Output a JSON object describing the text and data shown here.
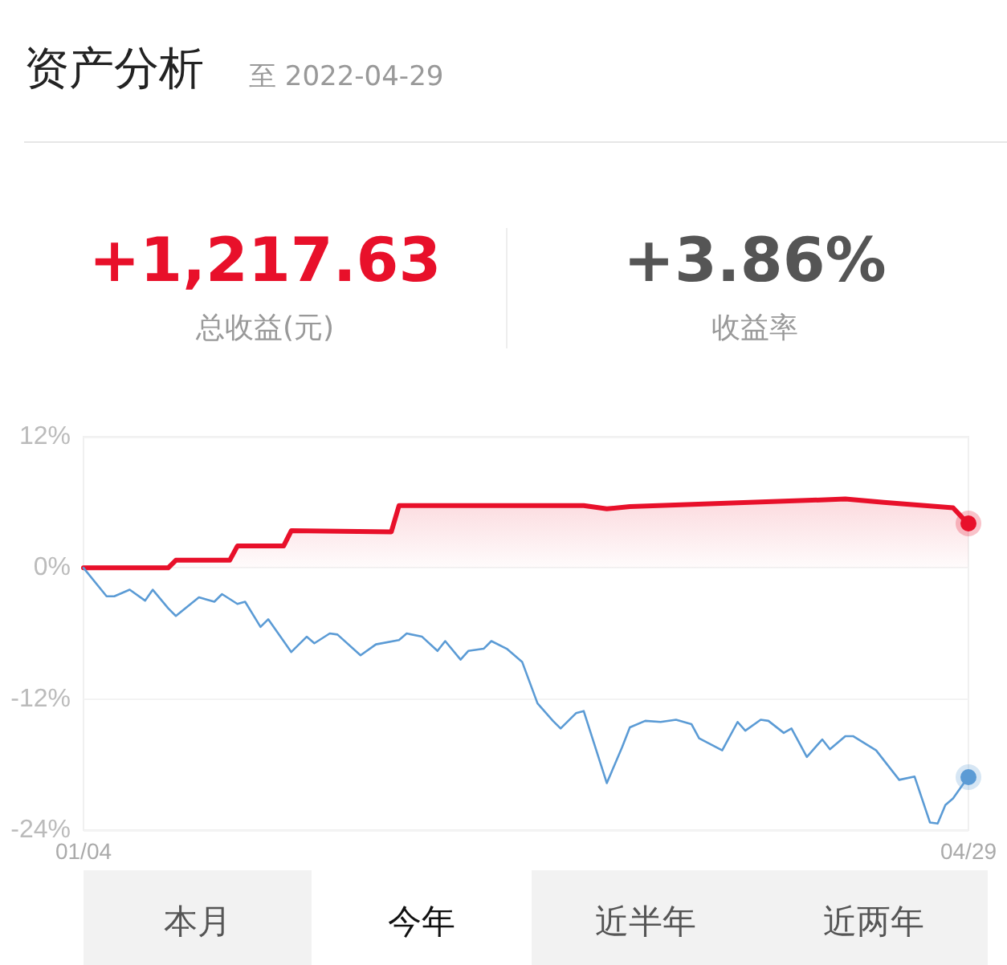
{
  "chart_data": {
    "type": "line",
    "title": "资产分析",
    "subtitle": "至 2022-04-29",
    "annotations": [
      "+1,217.63",
      "总收益(元)",
      "+3.86%",
      "收益率",
      "本月",
      "今年",
      "近半年",
      "近两年"
    ],
    "series": [
      {
        "type": "area",
        "color": "#e8102a",
        "x": [
          "2022-01-04",
          "2022-01-15",
          "2022-01-16",
          "2022-01-23",
          "2022-01-24",
          "2022-01-30",
          "2022-01-31",
          "2022-02-13",
          "2022-02-14",
          "2022-03-10",
          "2022-03-13",
          "2022-03-16",
          "2022-04-13",
          "2022-04-18",
          "2022-04-27",
          "2022-04-29"
        ],
        "values": [
          0,
          0,
          0.7,
          0.7,
          2.0,
          2.0,
          3.4,
          3.3,
          5.7,
          5.7,
          5.4,
          5.6,
          6.3,
          6.0,
          5.5,
          4.0
        ]
      },
      {
        "color": "#5b9bd5",
        "x": [
          "2022-01-04",
          "2022-01-07",
          "2022-01-08",
          "2022-01-10",
          "2022-01-12",
          "2022-01-13",
          "2022-01-15",
          "2022-01-16",
          "2022-01-19",
          "2022-01-21",
          "2022-01-22",
          "2022-01-24",
          "2022-01-25",
          "2022-01-27",
          "2022-01-28",
          "2022-01-30",
          "2022-01-31",
          "2022-02-02",
          "2022-02-03",
          "2022-02-05",
          "2022-02-06",
          "2022-02-09",
          "2022-02-11",
          "2022-02-14",
          "2022-02-15",
          "2022-02-17",
          "2022-02-19",
          "2022-02-20",
          "2022-02-22",
          "2022-02-23",
          "2022-02-25",
          "2022-02-26",
          "2022-02-28",
          "2022-03-02",
          "2022-03-04",
          "2022-03-06",
          "2022-03-07",
          "2022-03-09",
          "2022-03-10",
          "2022-03-13",
          "2022-03-15",
          "2022-03-16",
          "2022-03-18",
          "2022-03-20",
          "2022-03-22",
          "2022-03-24",
          "2022-03-25",
          "2022-03-28",
          "2022-03-30",
          "2022-03-31",
          "2022-04-02",
          "2022-04-03",
          "2022-04-05",
          "2022-04-06",
          "2022-04-08",
          "2022-04-10",
          "2022-04-11",
          "2022-04-13",
          "2022-04-14",
          "2022-04-17",
          "2022-04-20",
          "2022-04-22",
          "2022-04-24",
          "2022-04-25",
          "2022-04-26",
          "2022-04-27",
          "2022-04-29"
        ],
        "values": [
          0,
          -2.6,
          -2.6,
          -2.0,
          -3.0,
          -2.0,
          -3.7,
          -4.4,
          -2.7,
          -3.1,
          -2.4,
          -3.3,
          -3.1,
          -5.4,
          -4.7,
          -6.7,
          -7.7,
          -6.3,
          -6.9,
          -6.0,
          -6.1,
          -8.0,
          -7.0,
          -6.6,
          -6.0,
          -6.3,
          -7.6,
          -6.7,
          -8.4,
          -7.6,
          -7.4,
          -6.7,
          -7.4,
          -8.6,
          -12.4,
          -14.0,
          -14.7,
          -13.3,
          -13.1,
          -19.7,
          -16.4,
          -14.6,
          -14.0,
          -14.1,
          -13.9,
          -14.3,
          -15.6,
          -16.7,
          -14.1,
          -14.9,
          -13.9,
          -14.0,
          -15.1,
          -14.7,
          -17.3,
          -15.7,
          -16.6,
          -15.4,
          -15.4,
          -16.7,
          -19.4,
          -19.1,
          -23.3,
          -23.4,
          -21.7,
          -21.1,
          -19.1
        ]
      }
    ],
    "xlim": [
      "2022-01-04",
      "2022-04-29"
    ],
    "xticks": [
      {
        "value": "2022-01-04",
        "label": "01/04"
      },
      {
        "value": "2022-04-29",
        "label": "04/29"
      }
    ],
    "ylim": [
      -24,
      12
    ],
    "yticks": [
      {
        "value": -24,
        "label": "-24%"
      },
      {
        "value": -12,
        "label": "-12%"
      },
      {
        "value": 0,
        "label": "0%"
      },
      {
        "value": 12,
        "label": "12%"
      }
    ],
    "grid": "y",
    "line_style": "solid"
  }
}
